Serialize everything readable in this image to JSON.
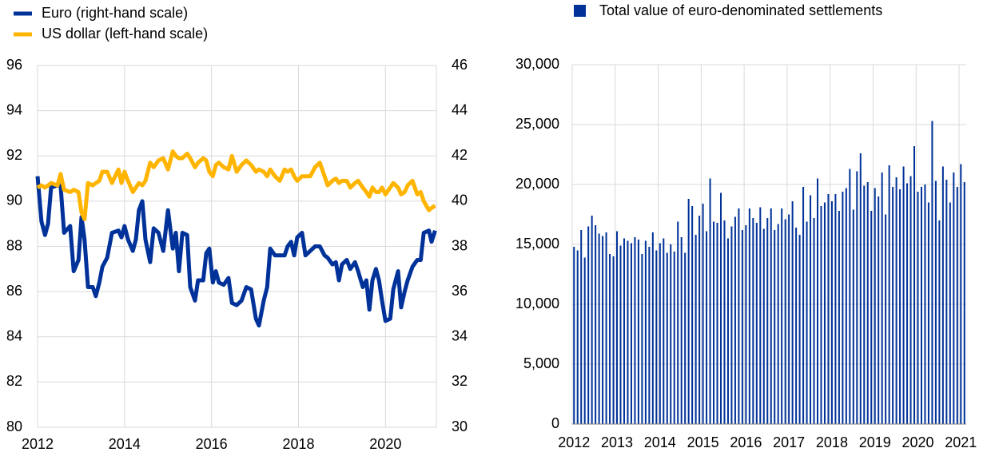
{
  "chart_data": [
    {
      "type": "line",
      "legend": "top",
      "x": [
        2012.0,
        2012.09,
        2012.17,
        2012.24,
        2012.31,
        2012.46,
        2012.53,
        2012.61,
        2012.75,
        2012.83,
        2012.94,
        2013.01,
        2013.08,
        2013.16,
        2013.27,
        2013.34,
        2013.42,
        2013.49,
        2013.6,
        2013.71,
        2013.86,
        2013.93,
        2014.0,
        2014.08,
        2014.19,
        2014.26,
        2014.33,
        2014.41,
        2014.48,
        2014.59,
        2014.67,
        2014.78,
        2014.89,
        2015.0,
        2015.11,
        2015.18,
        2015.25,
        2015.33,
        2015.44,
        2015.51,
        2015.62,
        2015.69,
        2015.81,
        2015.88,
        2015.95,
        2016.03,
        2016.1,
        2016.17,
        2016.28,
        2016.39,
        2016.47,
        2016.58,
        2016.69,
        2016.8,
        2016.91,
        2017.02,
        2017.09,
        2017.2,
        2017.28,
        2017.35,
        2017.46,
        2017.57,
        2017.68,
        2017.75,
        2017.83,
        2017.9,
        2017.97,
        2018.08,
        2018.16,
        2018.27,
        2018.38,
        2018.49,
        2018.6,
        2018.67,
        2018.78,
        2018.86,
        2018.93,
        2019.0,
        2019.11,
        2019.19,
        2019.3,
        2019.37,
        2019.48,
        2019.56,
        2019.63,
        2019.7,
        2019.78,
        2019.85,
        2019.92,
        2020.0,
        2020.11,
        2020.18,
        2020.29,
        2020.36,
        2020.44,
        2020.51,
        2020.62,
        2020.73,
        2020.81,
        2020.88,
        2021.0,
        2021.06,
        2021.14
      ],
      "series": [
        {
          "name": "Euro (right-hand scale)",
          "color": "#003299",
          "axis": "y2",
          "values": [
            41.1,
            39.1,
            38.5,
            39.0,
            40.6,
            40.7,
            40.7,
            38.6,
            38.9,
            36.9,
            37.4,
            39.3,
            38.3,
            36.2,
            36.2,
            35.8,
            36.4,
            37.1,
            37.5,
            38.6,
            38.7,
            38.4,
            38.9,
            38.3,
            37.8,
            38.3,
            39.6,
            40.0,
            38.3,
            37.3,
            38.8,
            38.6,
            37.8,
            39.6,
            37.9,
            38.6,
            36.9,
            38.6,
            38.5,
            36.2,
            35.6,
            36.5,
            36.5,
            37.7,
            37.9,
            36.4,
            36.9,
            36.4,
            36.3,
            36.6,
            35.5,
            35.4,
            35.6,
            36.2,
            36.1,
            34.8,
            34.5,
            35.6,
            36.2,
            37.9,
            37.6,
            37.6,
            37.6,
            38.0,
            38.2,
            37.6,
            38.4,
            38.6,
            37.6,
            37.8,
            38.0,
            38.0,
            37.6,
            37.5,
            37.2,
            37.3,
            36.5,
            37.2,
            37.4,
            37.0,
            37.3,
            36.9,
            36.2,
            36.5,
            35.2,
            36.5,
            37.0,
            36.5,
            35.6,
            34.7,
            34.8,
            36.1,
            36.9,
            35.3,
            36.0,
            36.5,
            37.1,
            37.4,
            37.4,
            38.6,
            38.7,
            38.2,
            38.7
          ]
        },
        {
          "name": "US dollar (left-hand scale)",
          "color": "#ffb400",
          "values": [
            90.6,
            90.7,
            90.6,
            90.7,
            90.8,
            90.7,
            91.2,
            90.5,
            90.4,
            90.5,
            90.4,
            89.5,
            89.2,
            90.8,
            90.7,
            90.8,
            90.9,
            91.3,
            91.3,
            90.8,
            91.4,
            90.8,
            91.3,
            90.9,
            90.4,
            90.6,
            90.8,
            90.7,
            90.9,
            91.7,
            91.5,
            91.8,
            91.9,
            91.4,
            92.2,
            92.0,
            91.9,
            91.9,
            92.1,
            91.9,
            91.5,
            91.7,
            91.9,
            91.8,
            91.3,
            91.1,
            91.6,
            91.7,
            91.5,
            91.4,
            92.0,
            91.3,
            91.6,
            91.8,
            91.6,
            91.3,
            91.4,
            91.3,
            91.1,
            91.4,
            91.1,
            90.9,
            91.4,
            91.3,
            91.4,
            91.1,
            90.9,
            91.1,
            91.1,
            91.1,
            91.5,
            91.7,
            91.1,
            90.7,
            90.9,
            91.0,
            90.8,
            90.9,
            90.9,
            90.6,
            90.8,
            90.9,
            90.6,
            90.4,
            90.2,
            90.6,
            90.4,
            90.4,
            90.6,
            90.3,
            90.6,
            90.8,
            90.6,
            90.3,
            90.4,
            90.7,
            90.9,
            90.3,
            90.4,
            90.0,
            89.6,
            89.7,
            89.8
          ]
        }
      ],
      "xlim": [
        2012,
        2021.17
      ],
      "xticks": [
        2012,
        2014,
        2016,
        2018,
        2020
      ],
      "ylim": [
        80,
        96
      ],
      "yticks": [
        80,
        82,
        84,
        86,
        88,
        90,
        92,
        94,
        96
      ],
      "y2lim": [
        30,
        46
      ],
      "y2ticks": [
        30,
        32,
        34,
        36,
        38,
        40,
        42,
        44,
        46
      ],
      "grid": true
    },
    {
      "type": "bar",
      "legend": "top",
      "categories": [
        "2012",
        null,
        null,
        null,
        null,
        null,
        null,
        null,
        null,
        null,
        null,
        null,
        "2013",
        null,
        null,
        null,
        null,
        null,
        null,
        null,
        null,
        null,
        null,
        null,
        "2014",
        null,
        null,
        null,
        null,
        null,
        null,
        null,
        null,
        null,
        null,
        null,
        "2015",
        null,
        null,
        null,
        null,
        null,
        null,
        null,
        null,
        null,
        null,
        null,
        "2016",
        null,
        null,
        null,
        null,
        null,
        null,
        null,
        null,
        null,
        null,
        null,
        "2017",
        null,
        null,
        null,
        null,
        null,
        null,
        null,
        null,
        null,
        null,
        null,
        "2018",
        null,
        null,
        null,
        null,
        null,
        null,
        null,
        null,
        null,
        null,
        null,
        "2019",
        null,
        null,
        null,
        null,
        null,
        null,
        null,
        null,
        null,
        null,
        null,
        "2020",
        null,
        null,
        null,
        null,
        null,
        null,
        null,
        null,
        null,
        null,
        null,
        "2021",
        null
      ],
      "series": [
        {
          "name": "Total value of euro-denominated settlements",
          "color": "#003299",
          "values": [
            14800,
            14500,
            16200,
            13900,
            16500,
            17400,
            16600,
            15900,
            15700,
            16000,
            14200,
            14000,
            16100,
            14900,
            15500,
            15300,
            15100,
            15600,
            15400,
            14200,
            15300,
            14800,
            16000,
            14500,
            15100,
            15500,
            14300,
            15000,
            14400,
            16900,
            15600,
            14300,
            18800,
            18200,
            15800,
            17400,
            18400,
            16100,
            20500,
            16900,
            16800,
            19300,
            17000,
            15500,
            16500,
            17300,
            18000,
            16200,
            16600,
            18000,
            17200,
            16800,
            18100,
            16300,
            17200,
            18000,
            16200,
            16700,
            18000,
            17100,
            17500,
            18600,
            16400,
            15800,
            19800,
            16900,
            19100,
            17200,
            20500,
            18200,
            18500,
            19200,
            18600,
            19200,
            17800,
            19400,
            19700,
            21300,
            17900,
            21100,
            22600,
            19900,
            20200,
            17800,
            19700,
            19000,
            21000,
            17500,
            21600,
            19800,
            20600,
            19600,
            21500,
            20100,
            20700,
            23200,
            19400,
            19800,
            20000,
            18500,
            25300,
            20300,
            17000,
            21500,
            20400,
            18500,
            21000,
            19800,
            21700,
            20200
          ]
        }
      ],
      "ylim": [
        0,
        30000
      ],
      "yticks": [
        0,
        {
          "value": 5000,
          "label": "5,000"
        },
        {
          "value": 10000,
          "label": "10,000"
        },
        {
          "value": 15000,
          "label": "15,000"
        },
        {
          "value": 20000,
          "label": "20,000"
        },
        {
          "value": 25000,
          "label": "25,000"
        },
        {
          "value": 30000,
          "label": "30,000"
        }
      ],
      "grid": true
    }
  ]
}
